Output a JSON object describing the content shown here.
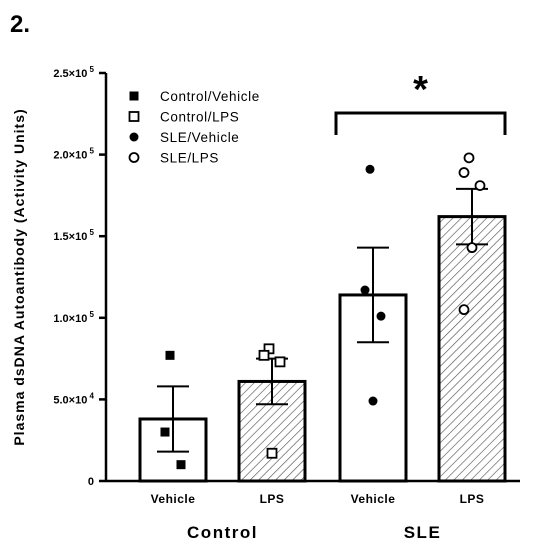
{
  "panel_label": "2.",
  "chart_data": {
    "type": "bar",
    "ylabel": "Plasma dsDNA Autoantibody (Activity Units)",
    "ylim": [
      0,
      250000
    ],
    "yticks": [
      {
        "value": 0,
        "label": "0",
        "exp": ""
      },
      {
        "value": 50000,
        "label": "5.0×10",
        "exp": "4"
      },
      {
        "value": 100000,
        "label": "1.0×10",
        "exp": "5"
      },
      {
        "value": 150000,
        "label": "1.5×10",
        "exp": "5"
      },
      {
        "value": 200000,
        "label": "2.0×10",
        "exp": "5"
      },
      {
        "value": 250000,
        "label": "2.5×10",
        "exp": "5"
      }
    ],
    "categories": [
      "Vehicle",
      "LPS",
      "Vehicle",
      "LPS"
    ],
    "groups": [
      {
        "label": "Control",
        "bars": [
          0,
          1
        ]
      },
      {
        "label": "SLE",
        "bars": [
          2,
          3
        ]
      }
    ],
    "series": [
      {
        "name": "Control/Vehicle",
        "marker": "filled-square",
        "hatch": false,
        "mean": 38000,
        "sem": 20000,
        "points": [
          77000,
          30000,
          10000
        ]
      },
      {
        "name": "Control/LPS",
        "marker": "open-square",
        "hatch": true,
        "mean": 61000,
        "sem": 14000,
        "points": [
          81000,
          77000,
          73000,
          17000
        ]
      },
      {
        "name": "SLE/Vehicle",
        "marker": "filled-circle",
        "hatch": false,
        "mean": 114000,
        "sem": 29000,
        "points": [
          191000,
          117000,
          101000,
          49000
        ]
      },
      {
        "name": "SLE/LPS",
        "marker": "open-circle",
        "hatch": true,
        "mean": 162000,
        "sem": 17000,
        "points": [
          198000,
          189000,
          181000,
          143000,
          105000
        ]
      }
    ],
    "significance": {
      "label": "*",
      "between": [
        2,
        3
      ]
    },
    "legend_position": "top-left",
    "grid": false
  }
}
